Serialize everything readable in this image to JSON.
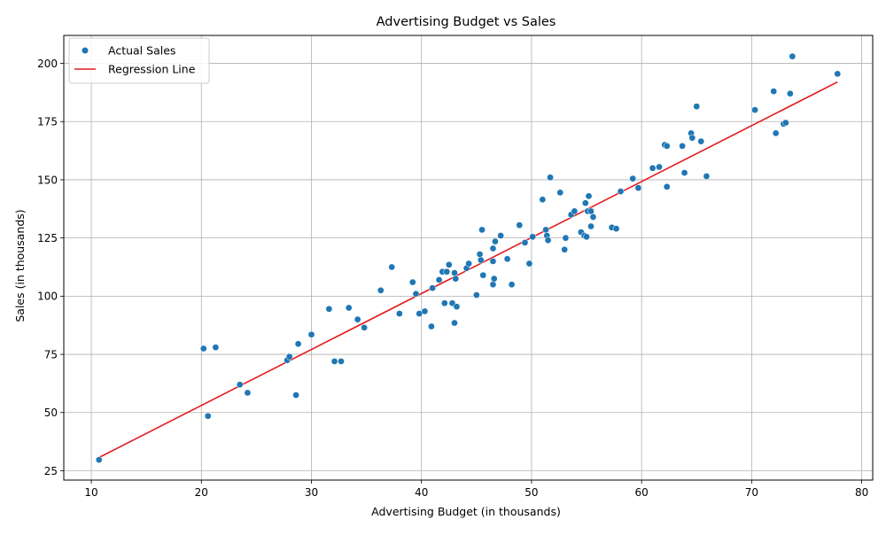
{
  "chart_data": {
    "type": "scatter",
    "title": "Advertising Budget vs Sales",
    "xlabel": "Advertising Budget (in thousands)",
    "ylabel": "Sales (in thousands)",
    "xlim": [
      7.5,
      81
    ],
    "ylim": [
      21,
      212
    ],
    "xticks": [
      10,
      20,
      30,
      40,
      50,
      60,
      70,
      80
    ],
    "yticks": [
      25,
      50,
      75,
      100,
      125,
      150,
      175,
      200
    ],
    "grid": true,
    "legend": {
      "placement": "top-left"
    },
    "colors": {
      "points": "#1f77b4",
      "line": "#e41a1c"
    },
    "series": [
      {
        "name": "Actual Sales",
        "kind": "scatter",
        "points": [
          [
            10.7,
            29.7
          ],
          [
            20.2,
            77.5
          ],
          [
            20.6,
            48.5
          ],
          [
            21.3,
            78.0
          ],
          [
            23.5,
            62.0
          ],
          [
            24.2,
            58.5
          ],
          [
            27.8,
            72.5
          ],
          [
            28.0,
            74.0
          ],
          [
            28.6,
            57.5
          ],
          [
            28.8,
            79.5
          ],
          [
            30.0,
            83.5
          ],
          [
            31.6,
            94.5
          ],
          [
            32.1,
            72.0
          ],
          [
            32.7,
            72.0
          ],
          [
            33.4,
            95.0
          ],
          [
            34.2,
            90.0
          ],
          [
            34.8,
            86.5
          ],
          [
            36.3,
            102.5
          ],
          [
            37.3,
            112.5
          ],
          [
            38.0,
            92.5
          ],
          [
            39.2,
            106.0
          ],
          [
            39.5,
            101.0
          ],
          [
            39.8,
            92.5
          ],
          [
            40.3,
            93.5
          ],
          [
            40.9,
            87.0
          ],
          [
            41.0,
            103.5
          ],
          [
            41.6,
            107.0
          ],
          [
            41.9,
            110.5
          ],
          [
            42.1,
            97.0
          ],
          [
            42.3,
            110.5
          ],
          [
            42.5,
            113.5
          ],
          [
            42.8,
            97.0
          ],
          [
            43.0,
            110.0
          ],
          [
            43.0,
            88.5
          ],
          [
            43.1,
            107.5
          ],
          [
            43.2,
            95.5
          ],
          [
            44.1,
            112.0
          ],
          [
            44.3,
            114.0
          ],
          [
            45.0,
            100.5
          ],
          [
            45.3,
            118.0
          ],
          [
            45.4,
            115.5
          ],
          [
            45.5,
            128.5
          ],
          [
            45.6,
            109.0
          ],
          [
            46.5,
            120.5
          ],
          [
            46.5,
            115.0
          ],
          [
            46.5,
            105.0
          ],
          [
            46.6,
            107.5
          ],
          [
            46.7,
            123.5
          ],
          [
            47.2,
            126.0
          ],
          [
            47.8,
            116.0
          ],
          [
            48.2,
            105.0
          ],
          [
            48.9,
            130.5
          ],
          [
            49.4,
            123.0
          ],
          [
            49.8,
            114.0
          ],
          [
            50.1,
            125.5
          ],
          [
            51.0,
            141.5
          ],
          [
            51.3,
            128.5
          ],
          [
            51.4,
            126.0
          ],
          [
            51.5,
            124.0
          ],
          [
            51.7,
            151.0
          ],
          [
            52.6,
            144.5
          ],
          [
            53.0,
            120.0
          ],
          [
            53.1,
            125.0
          ],
          [
            53.6,
            135.0
          ],
          [
            53.9,
            136.5
          ],
          [
            54.5,
            127.5
          ],
          [
            54.8,
            126.0
          ],
          [
            54.9,
            140.0
          ],
          [
            55.0,
            125.5
          ],
          [
            55.1,
            136.5
          ],
          [
            55.2,
            143.0
          ],
          [
            55.4,
            130.0
          ],
          [
            55.4,
            136.5
          ],
          [
            55.6,
            134.0
          ],
          [
            57.3,
            129.5
          ],
          [
            57.7,
            129.0
          ],
          [
            58.1,
            145.0
          ],
          [
            59.2,
            150.5
          ],
          [
            59.7,
            146.5
          ],
          [
            61.0,
            155.0
          ],
          [
            61.6,
            155.5
          ],
          [
            62.1,
            165.0
          ],
          [
            62.3,
            164.5
          ],
          [
            62.3,
            147.0
          ],
          [
            63.7,
            164.5
          ],
          [
            63.9,
            153.0
          ],
          [
            64.5,
            170.0
          ],
          [
            64.6,
            168.0
          ],
          [
            65.0,
            181.5
          ],
          [
            65.4,
            166.5
          ],
          [
            65.9,
            151.5
          ],
          [
            70.3,
            180.0
          ],
          [
            72.0,
            188.0
          ],
          [
            72.2,
            170.0
          ],
          [
            72.9,
            174.0
          ],
          [
            73.1,
            174.5
          ],
          [
            73.5,
            187.0
          ],
          [
            73.7,
            203.0
          ],
          [
            77.8,
            195.5
          ]
        ]
      },
      {
        "name": "Regression Line",
        "kind": "line",
        "points": [
          [
            10.7,
            30.7
          ],
          [
            77.8,
            192.0
          ]
        ]
      }
    ]
  }
}
